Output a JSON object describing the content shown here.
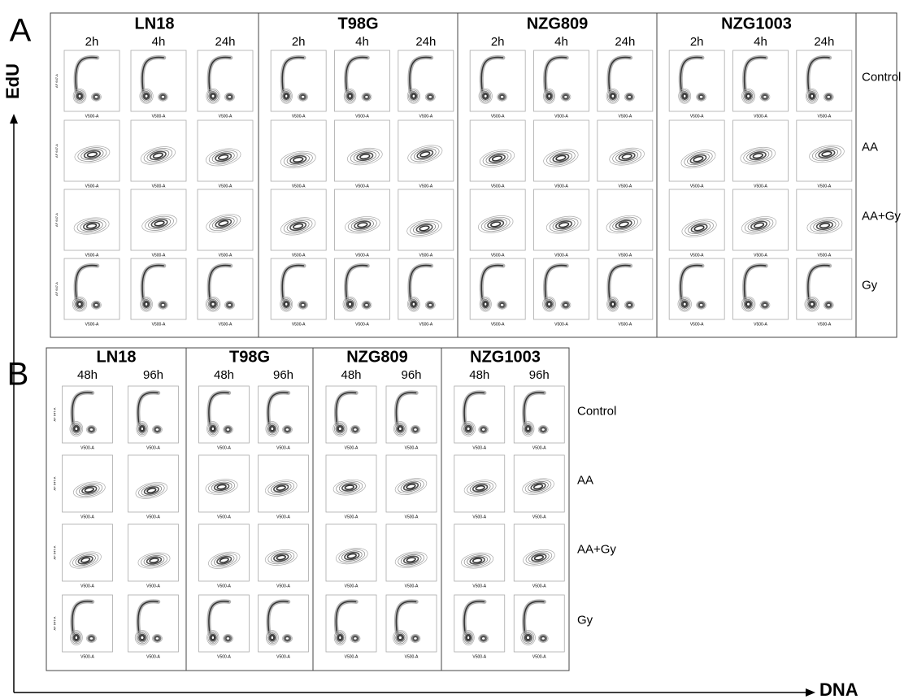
{
  "panels": [
    {
      "label": "A",
      "groups": [
        {
          "name": "LN18",
          "times": [
            "2h",
            "4h",
            "24h"
          ]
        },
        {
          "name": "T98G",
          "times": [
            "2h",
            "4h",
            "24h"
          ]
        },
        {
          "name": "NZG809",
          "times": [
            "2h",
            "4h",
            "24h"
          ]
        },
        {
          "name": "NZG1003",
          "times": [
            "2h",
            "4h",
            "24h"
          ]
        }
      ],
      "rows": [
        "Control",
        "AA",
        "AA+Gy",
        "Gy"
      ]
    },
    {
      "label": "B",
      "groups": [
        {
          "name": "LN18",
          "times": [
            "48h",
            "96h"
          ]
        },
        {
          "name": "T98G",
          "times": [
            "48h",
            "96h"
          ]
        },
        {
          "name": "NZG809",
          "times": [
            "48h",
            "96h"
          ]
        },
        {
          "name": "NZG1003",
          "times": [
            "48h",
            "96h"
          ]
        }
      ],
      "rows": [
        "Control",
        "AA",
        "AA+Gy",
        "Gy"
      ]
    }
  ],
  "axes": {
    "y": "EdU",
    "x": "DNA"
  },
  "plot_axis_labels": {
    "x": "V500-A",
    "y": "AF 647-A"
  }
}
